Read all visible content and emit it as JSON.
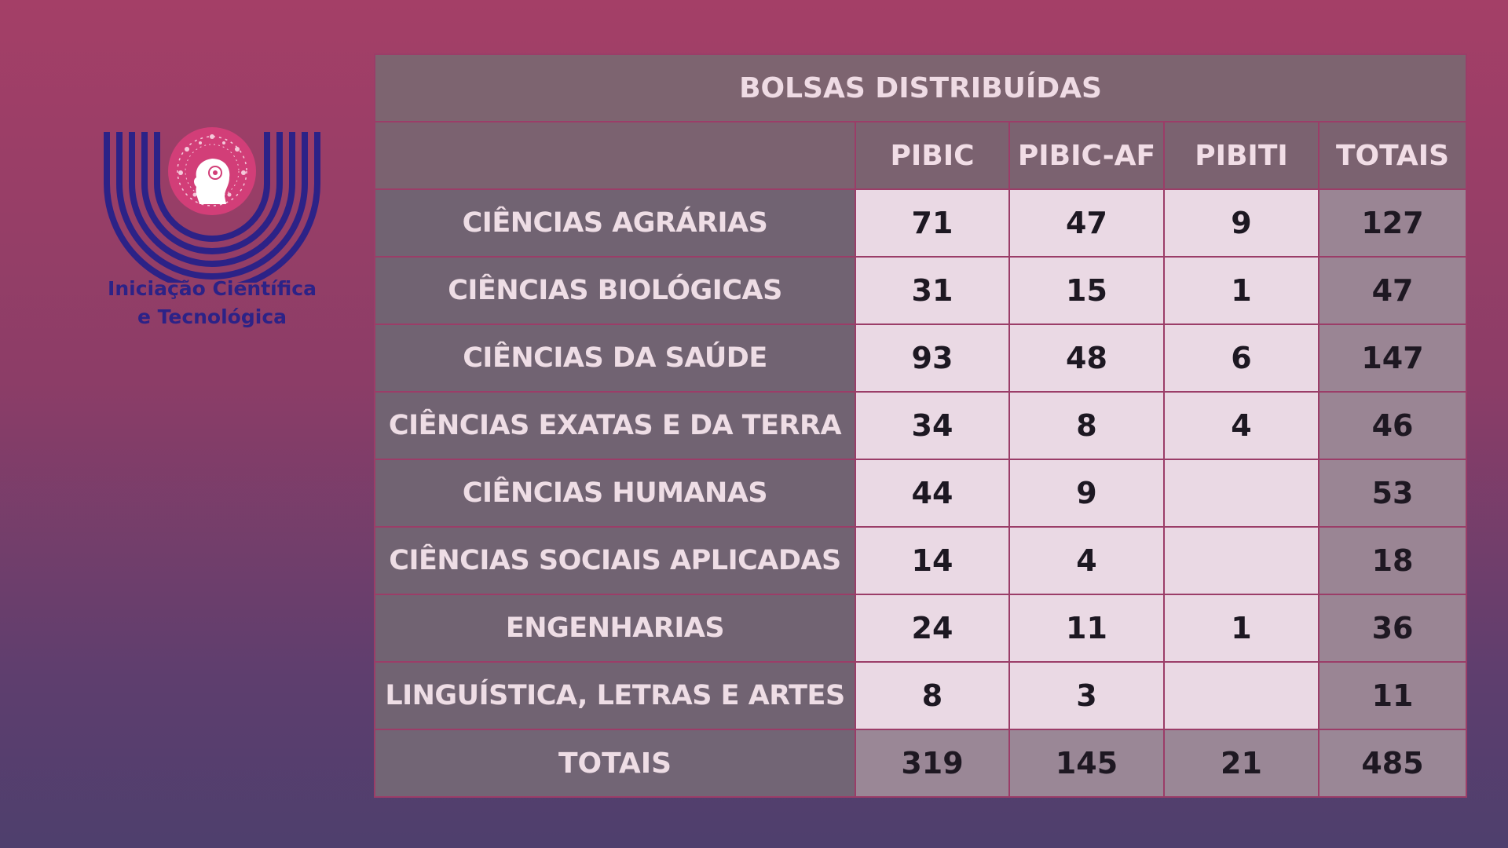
{
  "logo": {
    "line1": "Iniciação Científica",
    "line2": "e Tecnológica",
    "colors": {
      "arcs": "#2c2287",
      "circle": "#d23e78"
    }
  },
  "table": {
    "title": "BOLSAS DISTRIBUÍDAS",
    "headers": [
      "PIBIC",
      "PIBIC-AF",
      "PIBITI",
      "TOTAIS"
    ],
    "rows": [
      {
        "area": "CIÊNCIAS AGRÁRIAS",
        "pibic": "71",
        "pibic_af": "47",
        "pibiti": "9",
        "total": "127"
      },
      {
        "area": "CIÊNCIAS BIOLÓGICAS",
        "pibic": "31",
        "pibic_af": "15",
        "pibiti": "1",
        "total": "47"
      },
      {
        "area": "CIÊNCIAS DA SAÚDE",
        "pibic": "93",
        "pibic_af": "48",
        "pibiti": "6",
        "total": "147"
      },
      {
        "area": "CIÊNCIAS EXATAS E DA TERRA",
        "pibic": "34",
        "pibic_af": "8",
        "pibiti": "4",
        "total": "46"
      },
      {
        "area": "CIÊNCIAS HUMANAS",
        "pibic": "44",
        "pibic_af": "9",
        "pibiti": "",
        "total": "53"
      },
      {
        "area": "CIÊNCIAS SOCIAIS APLICADAS",
        "pibic": "14",
        "pibic_af": "4",
        "pibiti": "",
        "total": "18"
      },
      {
        "area": "ENGENHARIAS",
        "pibic": "24",
        "pibic_af": "11",
        "pibiti": "1",
        "total": "36"
      },
      {
        "area": "LINGUÍSTICA, LETRAS E ARTES",
        "pibic": "8",
        "pibic_af": "3",
        "pibiti": "",
        "total": "11"
      }
    ],
    "totals": {
      "label": "TOTAIS",
      "pibic": "319",
      "pibic_af": "145",
      "pibiti": "21",
      "total": "485"
    },
    "colors": {
      "label_cells": "#716372",
      "value_cells": "#ead9e4",
      "total_cells": "#9a8594",
      "borders": "#9b3d68"
    }
  }
}
